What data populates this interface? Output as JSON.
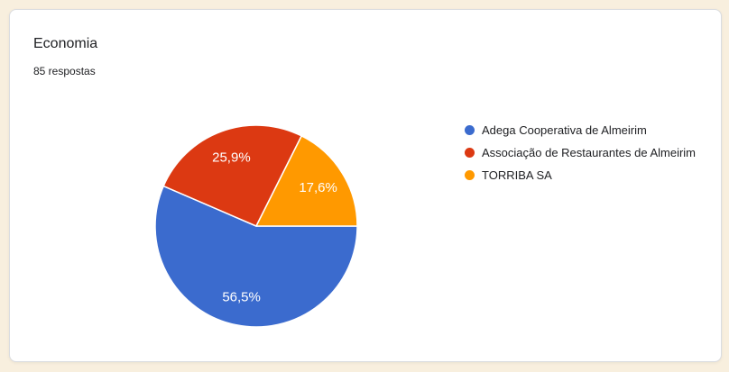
{
  "card": {
    "title": "Economia",
    "subtitle": "85 respostas"
  },
  "colors": {
    "page_background": "#F8EFDE",
    "card_background": "#FFFFFF",
    "card_border": "#DADCE0",
    "text": "#202124",
    "slice_label_text": "#FFFFFF",
    "slice_separator": "#FFFFFF"
  },
  "chart_data": {
    "type": "pie",
    "title": "Economia",
    "subtitle": "85 respostas",
    "total_responses": 85,
    "legend_position": "right",
    "start_angle_deg": 90,
    "direction": "clockwise",
    "slices": [
      {
        "label": "Adega Cooperativa de Almeirim",
        "pct": 56.5,
        "display": "56,5%",
        "color": "#3B6BCE"
      },
      {
        "label": "Associação de Restaurantes de Almeirim",
        "pct": 25.9,
        "display": "25,9%",
        "color": "#DC3912"
      },
      {
        "label": "TORRIBA SA",
        "pct": 17.6,
        "display": "17,6%",
        "color": "#FF9900"
      }
    ]
  }
}
